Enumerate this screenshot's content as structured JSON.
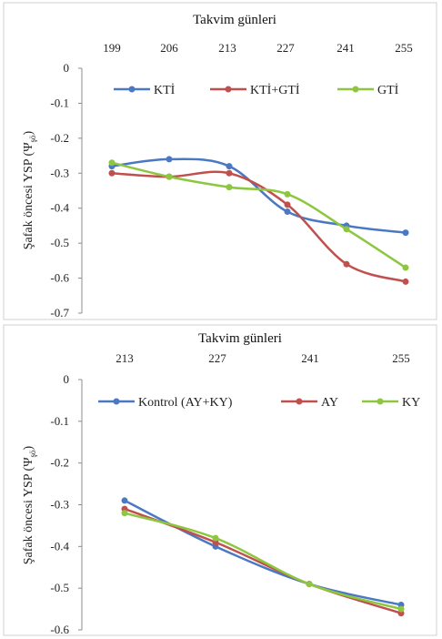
{
  "colors": {
    "blue": "#4a78c2",
    "red": "#c0504d",
    "green": "#8dc63f"
  },
  "chart_data": [
    {
      "type": "line",
      "title": "Takvim günleri",
      "ylabel": "Şafak öncesi YSP (Ψ",
      "ylabel_sub": "şö",
      "ylabel_close": ")",
      "x_ticks": [
        "199",
        "206",
        "213",
        "227",
        "241",
        "255"
      ],
      "y_ticks": [
        "0",
        "-0.1",
        "-0.2",
        "-0.3",
        "-0.4",
        "-0.5",
        "-0.6",
        "-0.7"
      ],
      "ylim": [
        -0.7,
        0
      ],
      "x_axis_position": "top",
      "grid": false,
      "legend_position": "top",
      "series": [
        {
          "name": "KTİ",
          "color": "#4a78c2",
          "values": [
            -0.28,
            -0.26,
            -0.28,
            -0.41,
            -0.45,
            -0.47
          ]
        },
        {
          "name": "KTİ+GTİ",
          "color": "#c0504d",
          "values": [
            -0.3,
            -0.31,
            -0.3,
            -0.39,
            -0.56,
            -0.61
          ]
        },
        {
          "name": "GTİ",
          "color": "#8dc63f",
          "values": [
            -0.27,
            -0.31,
            -0.34,
            -0.36,
            -0.46,
            -0.57
          ]
        }
      ]
    },
    {
      "type": "line",
      "title": "Takvim günleri",
      "ylabel": "Şafak öncesi YSP (Ψ",
      "ylabel_sub": "şö",
      "ylabel_close": ")",
      "x_ticks": [
        "213",
        "227",
        "241",
        "255"
      ],
      "y_ticks": [
        "0",
        "-0.1",
        "-0.2",
        "-0.3",
        "-0.4",
        "-0.5",
        "-0.6"
      ],
      "ylim": [
        -0.6,
        0
      ],
      "x_axis_position": "top",
      "grid": false,
      "legend_position": "top",
      "series": [
        {
          "name": "Kontrol (AY+KY)",
          "color": "#4a78c2",
          "values": [
            -0.29,
            -0.4,
            -0.49,
            -0.54
          ]
        },
        {
          "name": "AY",
          "color": "#c0504d",
          "values": [
            -0.31,
            -0.39,
            -0.49,
            -0.56
          ]
        },
        {
          "name": "KY",
          "color": "#8dc63f",
          "values": [
            -0.32,
            -0.38,
            -0.49,
            -0.55
          ]
        }
      ]
    }
  ]
}
